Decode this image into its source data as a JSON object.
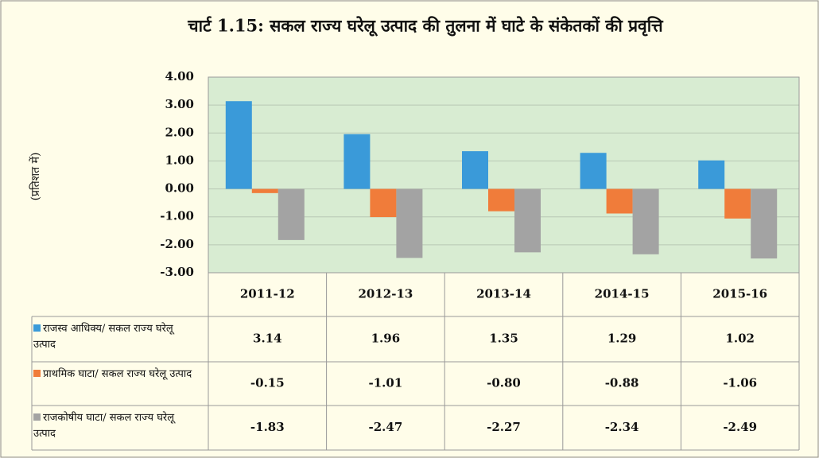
{
  "chart_data": {
    "type": "bar",
    "title": "चार्ट 1.15: सकल राज्य घरेलू उत्पाद की तुलना में घाटे के संकेतकों की प्रवृत्ति",
    "y_label": "(प्रतिशत में)",
    "categories": [
      "2011-12",
      "2012-13",
      "2013-14",
      "2014-15",
      "2015-16"
    ],
    "series": [
      {
        "name": "राजस्व आधिक्य/ सकल राज्य घरेलू उत्पाद",
        "color": "#3a9ad9",
        "values": [
          3.14,
          1.96,
          1.35,
          1.29,
          1.02
        ],
        "value_labels": [
          "3.14",
          "1.96",
          "1.35",
          "1.29",
          "1.02"
        ]
      },
      {
        "name": "प्राथमिक घाटा/ सकल राज्य घरेलू उत्पाद",
        "color": "#f07c3a",
        "values": [
          -0.15,
          -1.01,
          -0.8,
          -0.88,
          -1.06
        ],
        "value_labels": [
          "-0.15",
          "-1.01",
          "-0.80",
          "-0.88",
          "-1.06"
        ]
      },
      {
        "name": "राजकोषीय घाटा/ सकल राज्य घरेलू उत्पाद",
        "color": "#a3a3a3",
        "values": [
          -1.83,
          -2.47,
          -2.27,
          -2.34,
          -2.49
        ],
        "value_labels": [
          "-1.83",
          "-2.47",
          "-2.27",
          "-2.34",
          "-2.49"
        ]
      }
    ],
    "ylim": [
      -3,
      4
    ],
    "yticks": [
      {
        "value": 4,
        "label": "4.00"
      },
      {
        "value": 3,
        "label": "3.00"
      },
      {
        "value": 2,
        "label": "2.00"
      },
      {
        "value": 1,
        "label": "1.00"
      },
      {
        "value": 0,
        "label": "0.00"
      },
      {
        "value": -1,
        "label": "-1.00"
      },
      {
        "value": -2,
        "label": "-2.00"
      },
      {
        "value": -3,
        "label": "-3.00"
      }
    ],
    "grid": true
  }
}
